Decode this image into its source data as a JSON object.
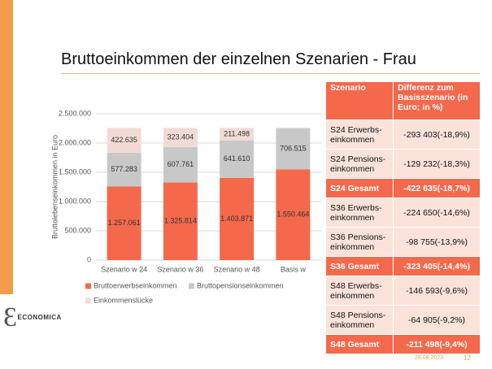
{
  "title": "Bruttoeinkommen der einzelnen Szenarien - Frau",
  "chart_data": {
    "type": "stacked_bar",
    "ylabel": "Bruttolebenseinkommen in Euro",
    "categories": [
      "Szenario w 24",
      "Szenario w 36",
      "Szenario w 48",
      "Basis w"
    ],
    "series": [
      {
        "name": "Bruttoerwerbseinkommen",
        "color": "#f4694c",
        "values": [
          1257061,
          1325814,
          1403871,
          1550464
        ],
        "value_labels": [
          "1.257.061",
          "1.325.814",
          "1.403.871",
          "1.550.464"
        ]
      },
      {
        "name": "Bruttopensionseinkommen",
        "color": "#c8c8c8",
        "values": [
          577283,
          607761,
          641610,
          706515
        ],
        "value_labels": [
          "577.283",
          "607.761",
          "641.610",
          "706.515"
        ]
      },
      {
        "name": "Einkommenslücke",
        "color": "#f2dbd5",
        "values": [
          422635,
          323404,
          211498,
          null
        ],
        "value_labels": [
          "422.635",
          "323.404",
          "211.498",
          null
        ]
      }
    ],
    "ylim": [
      0,
      2500000
    ],
    "yticks": [
      0,
      {
        "value": 500000,
        "label": "500.000"
      },
      {
        "value": 1000000,
        "label": "1.000.000"
      },
      {
        "value": 1500000,
        "label": "1.500.000"
      },
      {
        "value": 2000000,
        "label": "2.000.000"
      },
      {
        "value": 2500000,
        "label": "2.500.000"
      }
    ],
    "grid": true
  },
  "table": {
    "header": [
      "Szenario",
      "Differenz zum Basisszenario (in Euro; in %)"
    ],
    "rows": [
      [
        "S24 Erwerbs-einkommen",
        "-293 403(-18,9%)"
      ],
      [
        "S24 Pensions-einkommen",
        "-129 232(-18,3%)"
      ],
      [
        "S24 Gesamt",
        "-422 635(-18,7%)"
      ],
      [
        "S36 Erwerbs-einkommen",
        "-224 650(-14,6%)"
      ],
      [
        "S36 Pensions-einkommen",
        "-98 755(-13,9%)"
      ],
      [
        "S36 Gesamt",
        "-323 405(-14,4%)"
      ],
      [
        "S48 Erwerbs-einkommen",
        "-146 593(-9,6%)"
      ],
      [
        "S48 Pensions-einkommen",
        "-64 905(-9,2%)"
      ],
      [
        "S48 Gesamt",
        "-211 498(-9,4%)"
      ]
    ]
  },
  "logo": "ECONOMICA",
  "footer": {
    "date": "28.08.2023",
    "page": "12"
  }
}
